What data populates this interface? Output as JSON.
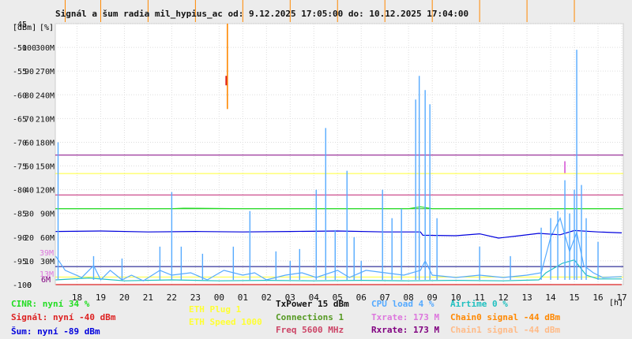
{
  "chart_data": {
    "type": "line",
    "title": "Signál a šum radia mil_hypius_ac od: 9.12.2025 17:05:00 do: 10.12.2025 17:04:00",
    "ylabel_dbm": "[dBm]",
    "ylabel_pct": "[%]",
    "xlabel": "[h]",
    "xticks": [
      "18",
      "19",
      "20",
      "21",
      "22",
      "23",
      "00",
      "01",
      "02",
      "03",
      "04",
      "05",
      "06",
      "07",
      "08",
      "09",
      "10",
      "11",
      "12",
      "13",
      "14",
      "15",
      "16",
      "17"
    ],
    "yticks_dbm": [
      "-45",
      "-50",
      "-55",
      "-60",
      "-65",
      "-70",
      "-75",
      "-80",
      "-85",
      "-90",
      "-95",
      "-100"
    ],
    "yticks_pct": [
      "100",
      "90",
      "80",
      "70",
      "60",
      "50",
      "40",
      "30",
      "20",
      "10",
      "0"
    ],
    "yticks_rate": [
      "300M",
      "270M",
      "240M",
      "210M",
      "180M",
      "150M",
      "120M",
      "90M",
      "60M",
      "30M",
      "0"
    ],
    "ylim_dbm": [
      -100,
      -45
    ],
    "xlim_h": [
      17.083,
      41.067
    ],
    "side_labels": {
      "top": "39M",
      "mid": "13M",
      "bottom": "6M"
    },
    "hlines_dbm": [
      {
        "y": -72.7,
        "color": "#800080"
      },
      {
        "y": -76.6,
        "color": "#ffff33"
      },
      {
        "y": -81.1,
        "color": "#c02070"
      },
      {
        "y": -84.0,
        "color": "#22bb22"
      },
      {
        "y": -96.2,
        "color": "#000080"
      },
      {
        "y": -98.4,
        "color": "#ffff33"
      }
    ],
    "series": [
      {
        "name": "Airtime",
        "color": "#20c0c0",
        "points": [
          [
            17.1,
            -99.0
          ],
          [
            18.5,
            -98.6
          ],
          [
            20.0,
            -99.2
          ],
          [
            22.0,
            -99.0
          ],
          [
            24.0,
            -99.2
          ],
          [
            26.0,
            -99.1
          ],
          [
            28.0,
            -99.2
          ],
          [
            30.0,
            -99.1
          ],
          [
            32.0,
            -99.2
          ],
          [
            34.0,
            -99.1
          ],
          [
            36.0,
            -99.2
          ],
          [
            37.5,
            -99.0
          ],
          [
            37.8,
            -97.5
          ],
          [
            38.5,
            -95.5
          ],
          [
            39.0,
            -94.8
          ],
          [
            39.5,
            -98.0
          ],
          [
            40.0,
            -98.8
          ],
          [
            41.0,
            -98.8
          ]
        ]
      },
      {
        "name": "CPU load",
        "color": "#55aaff",
        "points": [
          [
            17.1,
            -94.0
          ],
          [
            17.5,
            -97.0
          ],
          [
            18.2,
            -98.5
          ],
          [
            18.7,
            -96.0
          ],
          [
            19.0,
            -99.0
          ],
          [
            19.4,
            -97.0
          ],
          [
            19.9,
            -99.0
          ],
          [
            20.3,
            -98.0
          ],
          [
            20.8,
            -99.2
          ],
          [
            21.5,
            -97.0
          ],
          [
            22.0,
            -98.0
          ],
          [
            22.8,
            -97.5
          ],
          [
            23.5,
            -99.0
          ],
          [
            24.2,
            -97.0
          ],
          [
            25.0,
            -98.0
          ],
          [
            25.5,
            -97.5
          ],
          [
            26.0,
            -99.0
          ],
          [
            26.8,
            -98.0
          ],
          [
            27.5,
            -97.5
          ],
          [
            28.1,
            -98.5
          ],
          [
            29.0,
            -97.0
          ],
          [
            29.5,
            -98.5
          ],
          [
            30.2,
            -97.0
          ],
          [
            31.0,
            -97.5
          ],
          [
            31.8,
            -98.0
          ],
          [
            32.5,
            -97.0
          ],
          [
            32.7,
            -95.0
          ],
          [
            33.0,
            -98.0
          ],
          [
            34.0,
            -98.5
          ],
          [
            35.0,
            -98.0
          ],
          [
            36.0,
            -98.5
          ],
          [
            37.0,
            -98.0
          ],
          [
            37.6,
            -97.5
          ],
          [
            38.0,
            -90.0
          ],
          [
            38.4,
            -86.0
          ],
          [
            38.8,
            -93.0
          ],
          [
            39.1,
            -89.0
          ],
          [
            39.4,
            -96.0
          ],
          [
            39.8,
            -97.5
          ],
          [
            40.2,
            -98.5
          ],
          [
            41.0,
            -98.3
          ]
        ]
      },
      {
        "name": "Šum",
        "color": "#0000dd",
        "points": [
          [
            17.1,
            -88.8
          ],
          [
            19.0,
            -88.7
          ],
          [
            21.0,
            -88.9
          ],
          [
            23.0,
            -88.8
          ],
          [
            25.0,
            -88.9
          ],
          [
            27.0,
            -88.8
          ],
          [
            29.0,
            -88.7
          ],
          [
            31.0,
            -88.9
          ],
          [
            32.5,
            -88.9
          ],
          [
            32.6,
            -89.6
          ],
          [
            34.0,
            -89.7
          ],
          [
            35.0,
            -89.3
          ],
          [
            35.8,
            -90.2
          ],
          [
            36.5,
            -89.8
          ],
          [
            37.5,
            -89.2
          ],
          [
            38.4,
            -89.5
          ],
          [
            39.0,
            -88.6
          ],
          [
            40.0,
            -88.9
          ],
          [
            41.0,
            -89.1
          ]
        ]
      },
      {
        "name": "Signál",
        "color": "#dd2222",
        "points": [
          [
            17.1,
            -100.0
          ],
          [
            41.0,
            -100.0
          ]
        ]
      },
      {
        "name": "CINR",
        "color": "#22dd22",
        "points": [
          [
            17.1,
            -84.0
          ],
          [
            22.0,
            -84.0
          ],
          [
            22.5,
            -83.9
          ],
          [
            25.0,
            -84.0
          ],
          [
            30.0,
            -84.0
          ],
          [
            32.0,
            -84.0
          ],
          [
            32.5,
            -83.6
          ],
          [
            33.0,
            -84.0
          ],
          [
            35.0,
            -84.0
          ],
          [
            38.0,
            -84.0
          ],
          [
            41.0,
            -84.0
          ]
        ]
      }
    ],
    "spikes": {
      "color": "#55aaff",
      "points": [
        [
          17.2,
          -70.0
        ],
        [
          18.7,
          -94.0
        ],
        [
          19.9,
          -94.5
        ],
        [
          21.5,
          -92.0
        ],
        [
          22.0,
          -80.5
        ],
        [
          22.4,
          -92.0
        ],
        [
          23.3,
          -93.5
        ],
        [
          24.6,
          -92.0
        ],
        [
          25.3,
          -84.5
        ],
        [
          26.4,
          -93.0
        ],
        [
          27.0,
          -95.0
        ],
        [
          27.4,
          -92.5
        ],
        [
          28.1,
          -80.0
        ],
        [
          28.5,
          -67.0
        ],
        [
          28.9,
          -88.5
        ],
        [
          29.4,
          -76.0
        ],
        [
          29.7,
          -90.0
        ],
        [
          30.0,
          -95.0
        ],
        [
          30.9,
          -80.0
        ],
        [
          31.3,
          -86.0
        ],
        [
          31.7,
          -84.0
        ],
        [
          32.3,
          -61.0
        ],
        [
          32.45,
          -56.0
        ],
        [
          32.7,
          -59.0
        ],
        [
          32.9,
          -62.0
        ],
        [
          33.2,
          -86.0
        ],
        [
          35.0,
          -92.0
        ],
        [
          36.3,
          -94.0
        ],
        [
          37.6,
          -88.0
        ],
        [
          38.0,
          -86.0
        ],
        [
          38.3,
          -84.5
        ],
        [
          38.6,
          -78.0
        ],
        [
          38.8,
          -85.0
        ],
        [
          39.0,
          -80.0
        ],
        [
          39.1,
          -50.5
        ],
        [
          39.3,
          -79.0
        ],
        [
          39.5,
          -86.0
        ],
        [
          40.0,
          -91.0
        ]
      ]
    },
    "chain_spikes": {
      "color": "#ff8800",
      "points": [
        [
          24.3,
          -45.0
        ],
        [
          24.35,
          -63.0
        ],
        [
          17.5,
          -44.0
        ],
        [
          19.0,
          -44.0
        ],
        [
          21.0,
          -44.0
        ],
        [
          23.0,
          -44.0
        ],
        [
          25.0,
          -44.0
        ],
        [
          27.0,
          -44.0
        ],
        [
          29.0,
          -44.0
        ],
        [
          31.0,
          -44.0
        ],
        [
          33.0,
          -44.0
        ],
        [
          35.0,
          -44.0
        ],
        [
          37.0,
          -44.0
        ],
        [
          39.0,
          -44.0
        ]
      ]
    },
    "legend": [
      {
        "text": "CINR: nyní 34 %",
        "color": "#22dd22"
      },
      {
        "text": "Signál: nyní -40 dBm",
        "color": "#dd2222"
      },
      {
        "text": "Šum: nyní -89 dBm",
        "color": "#0000dd"
      },
      {
        "text": "ETH Plug 1",
        "color": "#ffff33"
      },
      {
        "text": "ETH Speed 1000",
        "color": "#ffff33"
      },
      {
        "text": "TxPower 15 dBm",
        "color": "#111111"
      },
      {
        "text": "Connections 1",
        "color": "#559922"
      },
      {
        "text": "Freq 5600 MHz",
        "color": "#cc4466"
      },
      {
        "text": "CPU load 4 %",
        "color": "#55aaff"
      },
      {
        "text": "Txrate: 173 M",
        "color": "#dd77dd"
      },
      {
        "text": "Rxrate: 173 M",
        "color": "#800080"
      },
      {
        "text": "Airtime 0 %",
        "color": "#20c0c0"
      },
      {
        "text": "Chain0 signal -44 dBm",
        "color": "#ff8800"
      },
      {
        "text": "Chain1 signal -44 dBm",
        "color": "#ffbb88"
      }
    ]
  }
}
